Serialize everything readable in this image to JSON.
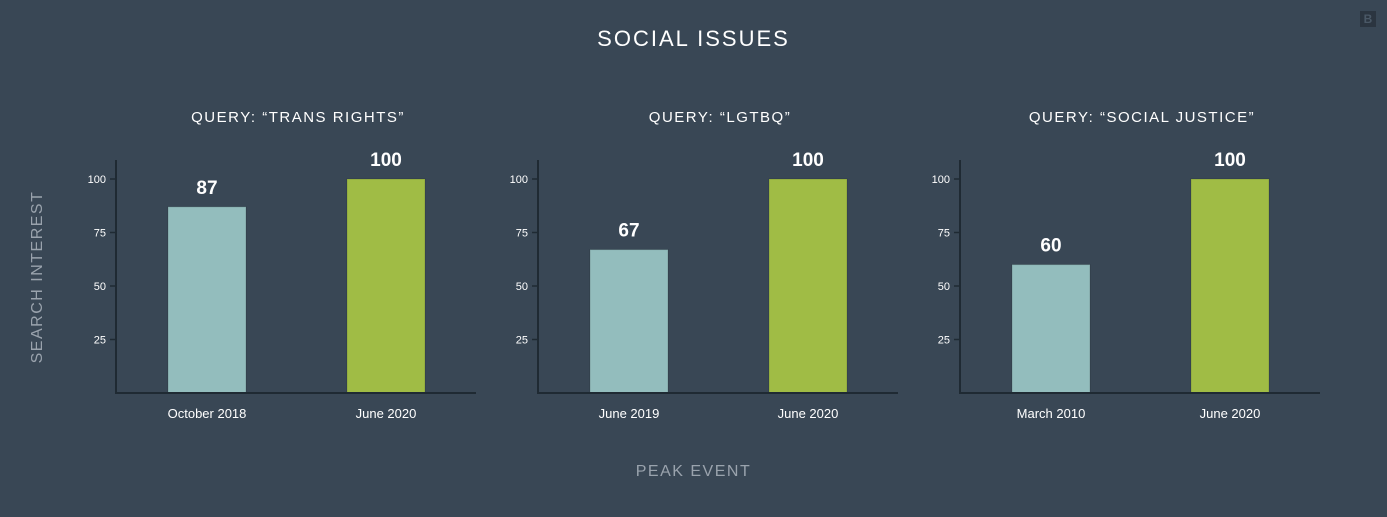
{
  "title": "SOCIAL ISSUES",
  "logo": "B",
  "ylabel": "SEARCH INTEREST",
  "xlabel": "PEAK EVENT",
  "colors": {
    "background": "#394755",
    "earlier": "#93bdbd",
    "latest": "#a0bc45",
    "axis": "#1f2a33"
  },
  "chart_data": [
    {
      "type": "bar",
      "title": "QUERY: “TRANS RIGHTS”",
      "categories": [
        "October 2018",
        "June 2020"
      ],
      "values": [
        87,
        100
      ],
      "yticks": [
        25,
        50,
        75,
        100
      ],
      "ylim": [
        0,
        100
      ],
      "xlabel": "PEAK EVENT",
      "ylabel": "SEARCH INTEREST"
    },
    {
      "type": "bar",
      "title": "QUERY: “LGTBQ”",
      "categories": [
        "June 2019",
        "June 2020"
      ],
      "values": [
        67,
        100
      ],
      "yticks": [
        25,
        50,
        75,
        100
      ],
      "ylim": [
        0,
        100
      ],
      "xlabel": "PEAK EVENT",
      "ylabel": "SEARCH INTEREST"
    },
    {
      "type": "bar",
      "title": "QUERY: “SOCIAL JUSTICE”",
      "categories": [
        "March 2010",
        "June 2020"
      ],
      "values": [
        60,
        100
      ],
      "yticks": [
        25,
        50,
        75,
        100
      ],
      "ylim": [
        0,
        100
      ],
      "xlabel": "PEAK EVENT",
      "ylabel": "SEARCH INTEREST"
    }
  ]
}
